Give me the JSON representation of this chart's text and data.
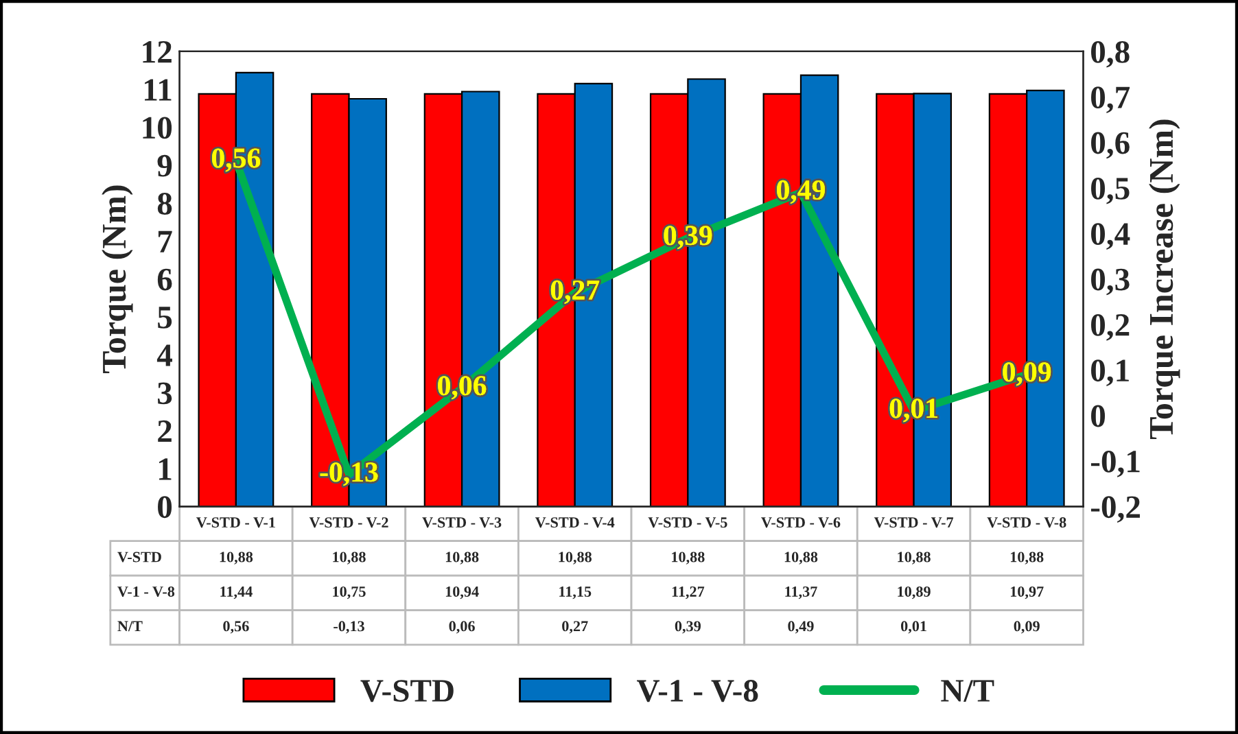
{
  "chart_data": {
    "type": "bar",
    "categories": [
      "V-STD - V-1",
      "V-STD - V-2",
      "V-STD - V-3",
      "V-STD - V-4",
      "V-STD - V-5",
      "V-STD - V-6",
      "V-STD - V-7",
      "V-STD - V-8"
    ],
    "series": [
      {
        "name": "V-STD",
        "color": "#ff0000",
        "values": [
          10.88,
          10.88,
          10.88,
          10.88,
          10.88,
          10.88,
          10.88,
          10.88
        ],
        "value_labels": [
          "10,88",
          "10,88",
          "10,88",
          "10,88",
          "10,88",
          "10,88",
          "10,88",
          "10,88"
        ]
      },
      {
        "name": "V-1 - V-8",
        "color": "#0070c0",
        "values": [
          11.44,
          10.75,
          10.94,
          11.15,
          11.27,
          11.37,
          10.89,
          10.97
        ],
        "value_labels": [
          "11,44",
          "10,75",
          "10,94",
          "11,15",
          "11,27",
          "11,37",
          "10,89",
          "10,97"
        ]
      },
      {
        "name": "N/T",
        "type": "line",
        "axis": "y2",
        "color": "#00b050",
        "values": [
          0.56,
          -0.13,
          0.06,
          0.27,
          0.39,
          0.49,
          0.01,
          0.09
        ],
        "value_labels": [
          "0,56",
          "-0,13",
          "0,06",
          "0,27",
          "0,39",
          "0,49",
          "0,01",
          "0,09"
        ]
      }
    ],
    "ylabel": "Torque (Nm)",
    "y2label": "Torque Increase (Nm)",
    "ylim": [
      0,
      12
    ],
    "yticks": [
      0,
      1,
      2,
      3,
      4,
      5,
      6,
      7,
      8,
      9,
      10,
      11,
      12
    ],
    "y2lim": [
      -0.2,
      0.8
    ],
    "y2ticks": [
      {
        "value": -0.2,
        "label": "-0,2"
      },
      {
        "value": -0.1,
        "label": "-0,1"
      },
      {
        "value": 0,
        "label": "0"
      },
      {
        "value": 0.1,
        "label": "0,1"
      },
      {
        "value": 0.2,
        "label": "0,2"
      },
      {
        "value": 0.3,
        "label": "0,3"
      },
      {
        "value": 0.4,
        "label": "0,4"
      },
      {
        "value": 0.5,
        "label": "0,5"
      },
      {
        "value": 0.6,
        "label": "0,6"
      },
      {
        "value": 0.7,
        "label": "0,7"
      },
      {
        "value": 0.8,
        "label": "0,8"
      }
    ],
    "legend": "bottom",
    "grid": false
  }
}
